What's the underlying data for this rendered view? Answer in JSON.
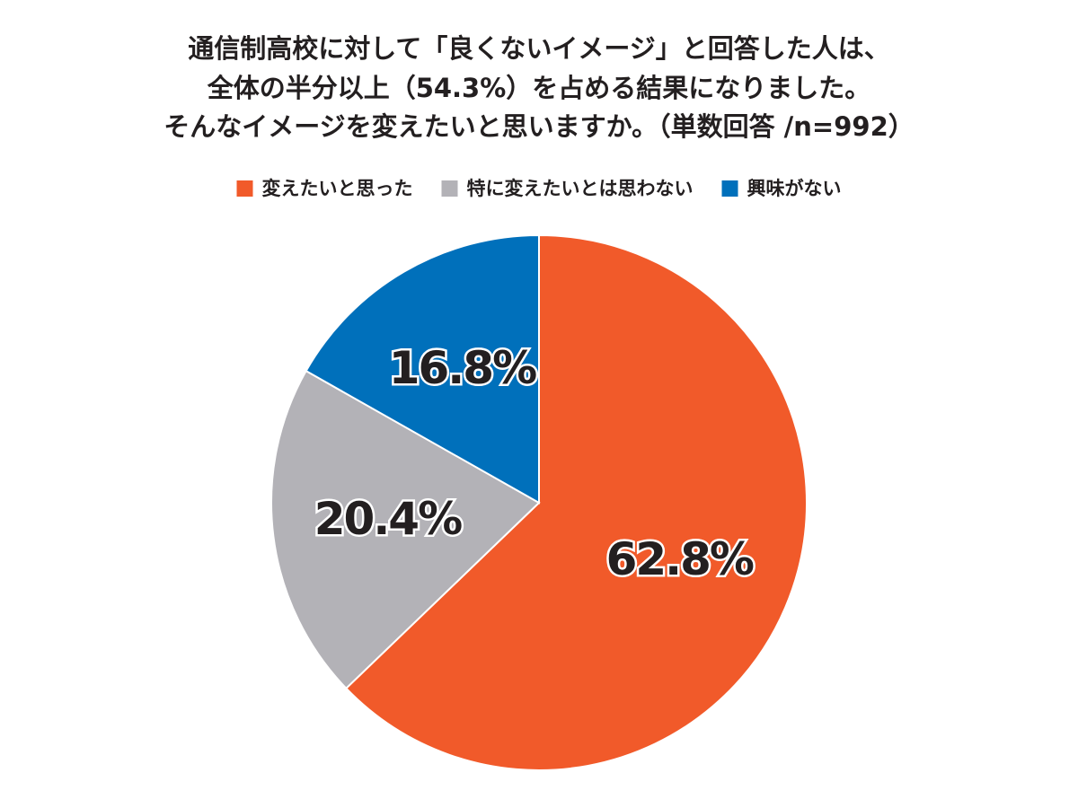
{
  "chart_data": {
    "type": "pie",
    "title": [
      "通信制高校に対して「良くないイメージ」と回答した人は、",
      "全体の半分以上（54.3%）を占める結果になりました。",
      "そんなイメージを変えたいと思いますか。（単数回答 /n=992）"
    ],
    "categories": [
      "変えたいと思った",
      "特に変えたいとは思わない",
      "興味がない"
    ],
    "values": [
      62.8,
      20.4,
      16.8
    ],
    "value_labels": [
      "62.8%",
      "20.4%",
      "16.8%"
    ],
    "colors": [
      "#f15a2a",
      "#b3b2b7",
      "#0070bb"
    ]
  }
}
